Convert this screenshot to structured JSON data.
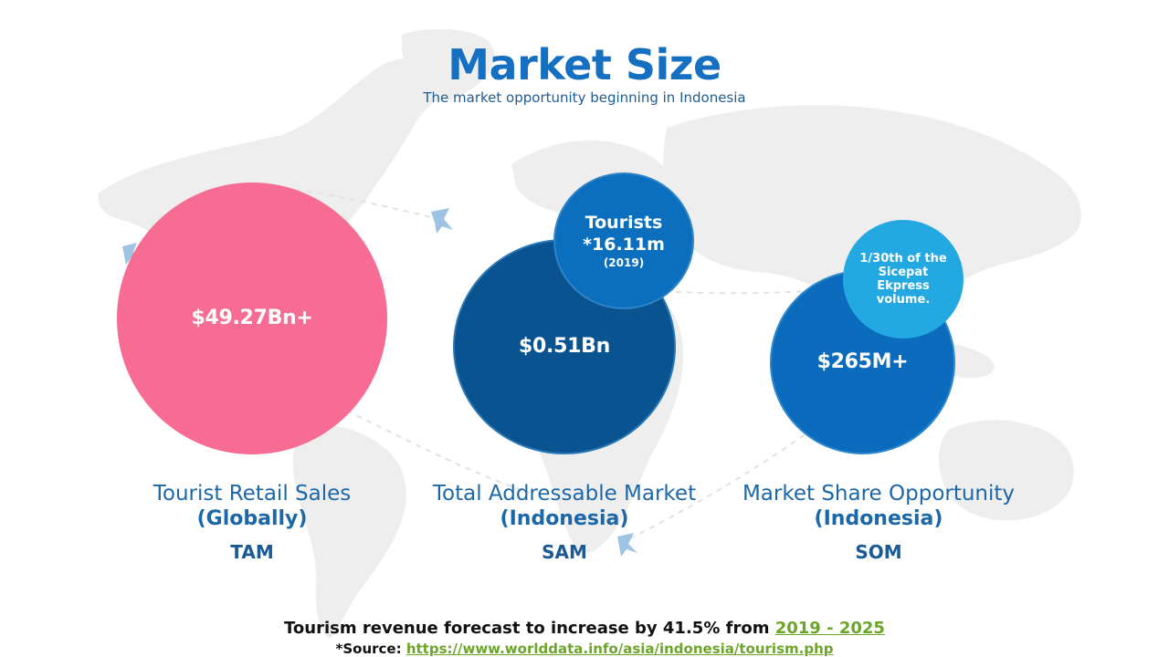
{
  "header": {
    "title": "Market Size",
    "subtitle": "The market opportunity beginning in Indonesia"
  },
  "tam": {
    "value": "$49.27Bn+",
    "name": "Tourist Retail Sales",
    "region": "(Globally)",
    "acronym": "TAM",
    "color": "#f76c92"
  },
  "sam": {
    "value": "$0.51Bn",
    "name": "Total Addressable Market",
    "region": "(Indonesia)",
    "acronym": "SAM",
    "color": "#0a5391",
    "bubble": {
      "title": "Tourists",
      "number": "*16.11m",
      "year": "(2019)",
      "color": "#0b6fbd"
    }
  },
  "som": {
    "value": "$265M+",
    "name": "Market Share Opportunity",
    "region": "(Indonesia)",
    "acronym": "SOM",
    "color": "#0b6cbd",
    "bubble": {
      "note": "1/30th of the Sicepat Ekpress volume.",
      "color": "#24a8e2"
    }
  },
  "footer": {
    "forecast_text": "Tourism revenue forecast to increase by 41.5% from",
    "forecast_period": "2019 - 2025",
    "source_label": "*Source:",
    "source_url": "https://www.worlddata.info/asia/indonesia/tourism.php"
  },
  "colors": {
    "title_blue": "#1670c1",
    "label_blue": "#1c67a8",
    "link_green": "#6da52b",
    "map_gray": "#ececec"
  }
}
